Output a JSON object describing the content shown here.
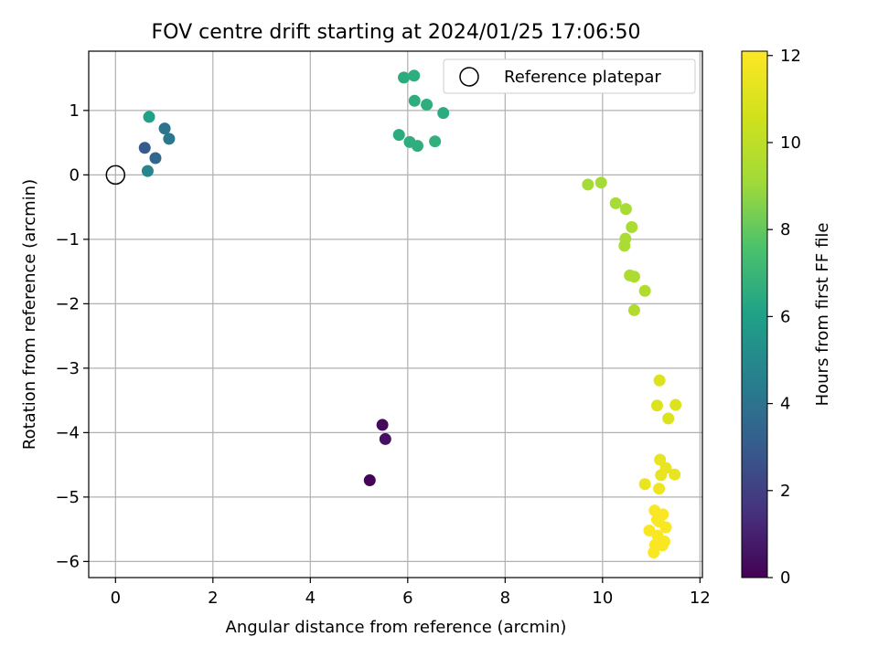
{
  "chart_data": {
    "type": "scatter",
    "title": "FOV centre drift starting at 2024/01/25 17:06:50",
    "xlabel": "Angular distance from reference (arcmin)",
    "ylabel": "Rotation from reference (arcmin)",
    "xlim": [
      -0.55,
      12.05
    ],
    "ylim": [
      -6.25,
      1.92
    ],
    "xticks": [
      0,
      2,
      4,
      6,
      8,
      10,
      12
    ],
    "yticks": [
      -6,
      -5,
      -4,
      -3,
      -2,
      -1,
      0,
      1
    ],
    "grid": true,
    "legend": {
      "position": "top-right",
      "entries": [
        {
          "label": "Reference platepar",
          "marker": "open-circle"
        }
      ]
    },
    "reference_point": {
      "x": 0,
      "y": 0
    },
    "colorbar": {
      "label": "Hours from first FF file",
      "range": [
        0,
        12.1
      ],
      "ticks": [
        0,
        2,
        4,
        6,
        8,
        10,
        12
      ],
      "colormap": "viridis"
    },
    "series": [
      {
        "colored_by": "Hours from first FF file",
        "points": [
          {
            "x": 5.22,
            "y": -4.74,
            "c": 0.1
          },
          {
            "x": 5.48,
            "y": -3.88,
            "c": 0.3
          },
          {
            "x": 5.54,
            "y": -4.1,
            "c": 0.5
          },
          {
            "x": 0.6,
            "y": 0.42,
            "c": 3.0
          },
          {
            "x": 0.82,
            "y": 0.26,
            "c": 3.5
          },
          {
            "x": 1.01,
            "y": 0.72,
            "c": 4.0
          },
          {
            "x": 1.1,
            "y": 0.56,
            "c": 4.2
          },
          {
            "x": 0.66,
            "y": 0.06,
            "c": 4.8
          },
          {
            "x": 0.69,
            "y": 0.9,
            "c": 6.0
          },
          {
            "x": 5.92,
            "y": 1.51,
            "c": 6.5
          },
          {
            "x": 6.13,
            "y": 1.54,
            "c": 6.6
          },
          {
            "x": 6.14,
            "y": 1.15,
            "c": 6.6
          },
          {
            "x": 6.39,
            "y": 1.09,
            "c": 6.6
          },
          {
            "x": 6.73,
            "y": 0.96,
            "c": 6.5
          },
          {
            "x": 5.82,
            "y": 0.62,
            "c": 6.5
          },
          {
            "x": 6.04,
            "y": 0.51,
            "c": 6.6
          },
          {
            "x": 6.2,
            "y": 0.45,
            "c": 6.6
          },
          {
            "x": 6.56,
            "y": 0.52,
            "c": 6.7
          },
          {
            "x": 9.7,
            "y": -0.15,
            "c": 9.2
          },
          {
            "x": 9.97,
            "y": -0.12,
            "c": 9.2
          },
          {
            "x": 10.27,
            "y": -0.44,
            "c": 9.3
          },
          {
            "x": 10.48,
            "y": -0.53,
            "c": 9.3
          },
          {
            "x": 10.6,
            "y": -0.81,
            "c": 9.4
          },
          {
            "x": 10.47,
            "y": -0.99,
            "c": 9.4
          },
          {
            "x": 10.45,
            "y": -1.1,
            "c": 9.4
          },
          {
            "x": 10.56,
            "y": -1.56,
            "c": 9.5
          },
          {
            "x": 10.65,
            "y": -1.58,
            "c": 9.5
          },
          {
            "x": 10.87,
            "y": -1.8,
            "c": 9.6
          },
          {
            "x": 10.65,
            "y": -2.1,
            "c": 9.6
          },
          {
            "x": 11.17,
            "y": -3.19,
            "c": 11.0
          },
          {
            "x": 11.12,
            "y": -3.58,
            "c": 11.0
          },
          {
            "x": 11.5,
            "y": -3.57,
            "c": 11.0
          },
          {
            "x": 11.35,
            "y": -3.78,
            "c": 11.0
          },
          {
            "x": 11.18,
            "y": -4.42,
            "c": 11.4
          },
          {
            "x": 11.3,
            "y": -4.55,
            "c": 11.4
          },
          {
            "x": 11.2,
            "y": -4.66,
            "c": 11.4
          },
          {
            "x": 11.48,
            "y": -4.65,
            "c": 11.4
          },
          {
            "x": 10.87,
            "y": -4.8,
            "c": 11.5
          },
          {
            "x": 11.16,
            "y": -4.87,
            "c": 11.6
          },
          {
            "x": 11.07,
            "y": -5.21,
            "c": 12.0
          },
          {
            "x": 11.24,
            "y": -5.27,
            "c": 12.0
          },
          {
            "x": 11.12,
            "y": -5.35,
            "c": 12.0
          },
          {
            "x": 11.16,
            "y": -5.38,
            "c": 12.0
          },
          {
            "x": 11.3,
            "y": -5.47,
            "c": 12.0
          },
          {
            "x": 10.96,
            "y": -5.52,
            "c": 12.0
          },
          {
            "x": 11.13,
            "y": -5.6,
            "c": 12.0
          },
          {
            "x": 11.27,
            "y": -5.69,
            "c": 12.0
          },
          {
            "x": 11.08,
            "y": -5.74,
            "c": 12.0
          },
          {
            "x": 11.23,
            "y": -5.75,
            "c": 12.0
          },
          {
            "x": 11.05,
            "y": -5.86,
            "c": 12.0
          }
        ]
      }
    ]
  }
}
